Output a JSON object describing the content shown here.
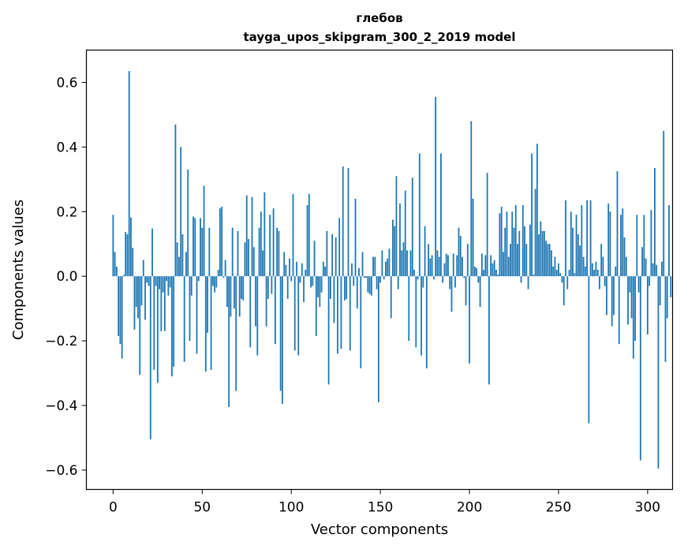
{
  "chart_data": {
    "type": "bar",
    "title": "глебов",
    "subtitle": "tayga_upos_skipgram_300_2_2019 model",
    "xlabel": "Vector components",
    "ylabel": "Components values",
    "xlim": [
      -15,
      314
    ],
    "ylim": [
      -0.66,
      0.7
    ],
    "xticks": [
      0,
      50,
      100,
      150,
      200,
      250,
      300
    ],
    "yticks": [
      -0.6,
      -0.4,
      -0.2,
      0.0,
      0.2,
      0.4,
      0.6
    ],
    "xtick_labels": [
      "0",
      "50",
      "100",
      "150",
      "200",
      "250",
      "300"
    ],
    "ytick_labels": [
      "−0.6",
      "−0.4",
      "−0.2",
      "0.0",
      "0.2",
      "0.4",
      "0.6"
    ],
    "bar_color": "#1f77b4",
    "grid": false,
    "values": [
      0.19,
      0.075,
      0.03,
      -0.185,
      -0.21,
      -0.255,
      0.004,
      0.137,
      0.13,
      0.635,
      0.182,
      0.088,
      -0.165,
      -0.095,
      -0.13,
      -0.305,
      -0.09,
      0.05,
      -0.135,
      -0.02,
      -0.03,
      -0.505,
      0.148,
      -0.29,
      -0.03,
      -0.33,
      -0.04,
      -0.17,
      -0.05,
      -0.17,
      -0.015,
      -0.06,
      -0.035,
      -0.31,
      -0.28,
      0.47,
      0.105,
      0.06,
      0.4,
      0.13,
      -0.265,
      0.075,
      0.33,
      -0.2,
      -0.06,
      0.185,
      0.18,
      -0.24,
      -0.015,
      0.18,
      0.15,
      0.28,
      -0.295,
      -0.175,
      0.15,
      -0.29,
      -0.03,
      -0.05,
      -0.035,
      0.02,
      0.21,
      0.215,
      -0.005,
      0.05,
      -0.095,
      -0.405,
      -0.125,
      0.15,
      -0.1,
      -0.355,
      0.14,
      -0.125,
      -0.07,
      -0.075,
      0.105,
      0.25,
      0.115,
      -0.22,
      0.245,
      0.09,
      -0.155,
      -0.245,
      0.15,
      0.2,
      0.08,
      0.26,
      -0.155,
      -0.07,
      0.19,
      -0.055,
      0.21,
      -0.21,
      0.15,
      0.14,
      -0.355,
      -0.395,
      0.075,
      0.035,
      -0.07,
      0.055,
      -0.015,
      0.255,
      -0.23,
      0.045,
      -0.245,
      -0.02,
      0.04,
      -0.08,
      0.02,
      0.22,
      0.255,
      -0.035,
      -0.03,
      0.11,
      -0.185,
      -0.065,
      -0.095,
      -0.05,
      0.045,
      0.03,
      0.14,
      -0.335,
      -0.07,
      0.13,
      -0.145,
      0.12,
      -0.24,
      0.18,
      -0.225,
      0.34,
      -0.075,
      -0.07,
      0.335,
      -0.23,
      0.04,
      -0.03,
      0.24,
      -0.1,
      0.025,
      -0.285,
      0.075,
      -0.005,
      -0.005,
      -0.05,
      -0.055,
      -0.06,
      0.06,
      0.06,
      -0.04,
      -0.39,
      -0.02,
      0.08,
      -0.01,
      0.045,
      0.055,
      0.085,
      -0.13,
      0.175,
      0.155,
      0.31,
      -0.04,
      0.225,
      0.08,
      0.105,
      0.265,
      0.08,
      -0.2,
      0.08,
      0.305,
      0.02,
      -0.22,
      -0.01,
      0.38,
      -0.245,
      -0.035,
      0.155,
      -0.285,
      0.1,
      0.055,
      0.065,
      -0.01,
      0.555,
      0.08,
      0.06,
      0.38,
      -0.02,
      0.04,
      0.07,
      0.065,
      -0.04,
      -0.11,
      0.07,
      -0.035,
      0.065,
      0.15,
      0.125,
      0.06,
      -0.005,
      -0.09,
      0.1,
      -0.27,
      0.48,
      0.24,
      0.03,
      0.025,
      -0.02,
      -0.095,
      0.07,
      0.02,
      0.065,
      0.32,
      -0.335,
      0.065,
      0.04,
      0.05,
      0.02,
      0.005,
      0.195,
      0.215,
      0.075,
      0.15,
      0.2,
      0.06,
      0.1,
      0.2,
      0.15,
      0.22,
      0.1,
      0.14,
      -0.02,
      0.22,
      0.155,
      0.1,
      -0.04,
      0.16,
      0.38,
      0.005,
      0.27,
      0.41,
      0.13,
      0.17,
      0.14,
      0.14,
      0.11,
      0.1,
      0.1,
      0.08,
      0.03,
      0.06,
      0.02,
      0.04,
      0.01,
      -0.02,
      -0.09,
      0.235,
      -0.04,
      0.02,
      0.2,
      0.15,
      0.01,
      0.19,
      0.13,
      0.095,
      0.22,
      0.06,
      0.03,
      0.235,
      -0.455,
      0.235,
      0.04,
      0.02,
      0.045,
      0.02,
      -0.04,
      0.1,
      0.06,
      -0.03,
      -0.12,
      0.225,
      0.2,
      -0.155,
      -0.12,
      0.03,
      0.325,
      -0.21,
      0.19,
      0.21,
      0.12,
      0.06,
      -0.15,
      -0.05,
      -0.13,
      -0.255,
      -0.2,
      0.19,
      -0.05,
      -0.57,
      0.09,
      0.19,
      0.055,
      -0.18,
      -0.03,
      0.205,
      0.04,
      0.335,
      0.035,
      -0.595,
      -0.09,
      0.045,
      0.45,
      -0.265,
      -0.13,
      0.22,
      -0.065
    ]
  }
}
